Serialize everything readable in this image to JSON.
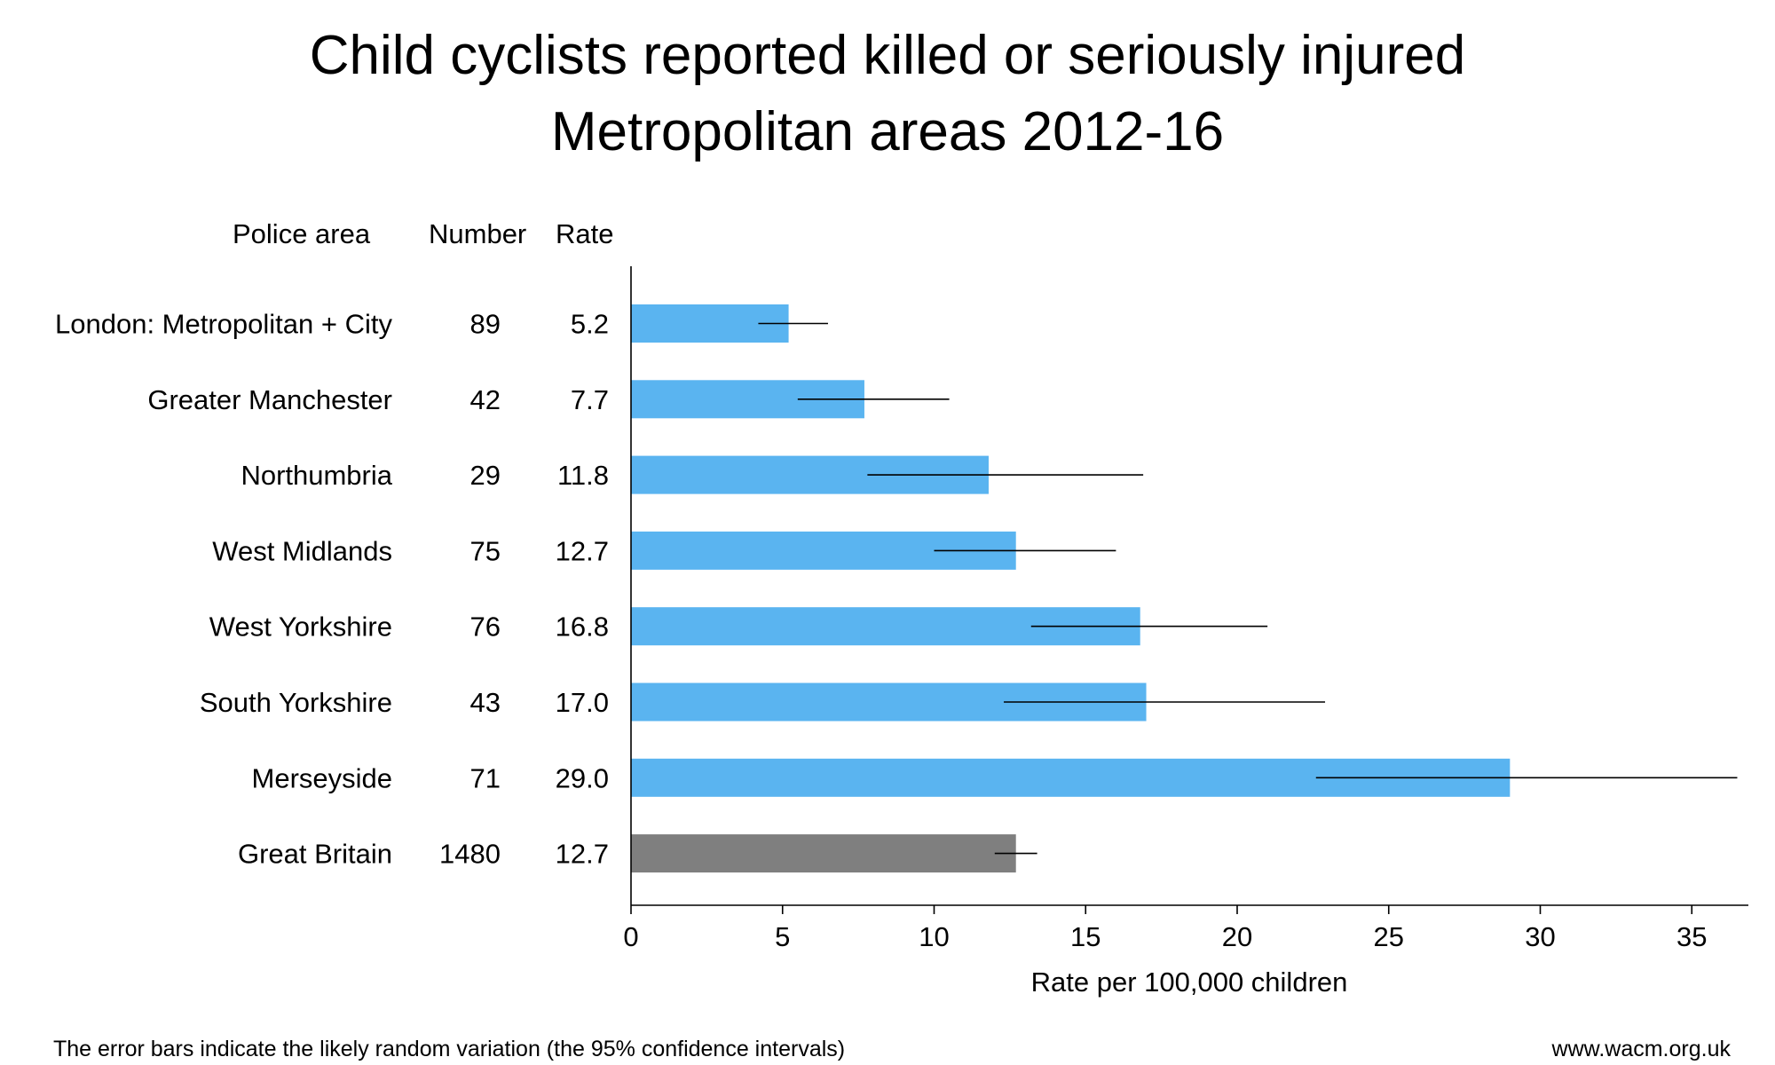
{
  "chart_data": {
    "type": "bar",
    "orientation": "horizontal",
    "title": "Child cyclists reported killed or seriously injured",
    "subtitle": "Metropolitan areas 2012-16",
    "table_headers": {
      "area": "Police area",
      "number": "Number",
      "rate": "Rate"
    },
    "categories": [
      "London: Metropolitan + City",
      "Greater Manchester",
      "Northumbria",
      "West Midlands",
      "West Yorkshire",
      "South Yorkshire",
      "Merseyside",
      "Great Britain"
    ],
    "numbers": [
      "89",
      "42",
      "29",
      "75",
      "76",
      "43",
      "71",
      "1480"
    ],
    "rate_labels": [
      "5.2",
      "7.7",
      "11.8",
      "12.7",
      "16.8",
      "17.0",
      "29.0",
      "12.7"
    ],
    "values": [
      5.2,
      7.7,
      11.8,
      12.7,
      16.8,
      17.0,
      29.0,
      12.7
    ],
    "ci_lower": [
      4.2,
      5.5,
      7.8,
      10.0,
      13.2,
      12.3,
      22.6,
      12.0
    ],
    "ci_upper": [
      6.5,
      10.5,
      16.9,
      16.0,
      21.0,
      22.9,
      36.5,
      13.4
    ],
    "bar_colors": [
      "#5ab4f0",
      "#5ab4f0",
      "#5ab4f0",
      "#5ab4f0",
      "#5ab4f0",
      "#5ab4f0",
      "#5ab4f0",
      "#7f7f7f"
    ],
    "xlabel": "Rate per 100,000 children",
    "xlim": [
      0,
      37
    ],
    "xticks": [
      0,
      5,
      10,
      15,
      20,
      25,
      30,
      35
    ],
    "grid": false,
    "legend": "none"
  },
  "footer": {
    "note": "The error bars indicate the likely random variation (the 95% confidence intervals)",
    "source": "www.wacm.org.uk"
  }
}
